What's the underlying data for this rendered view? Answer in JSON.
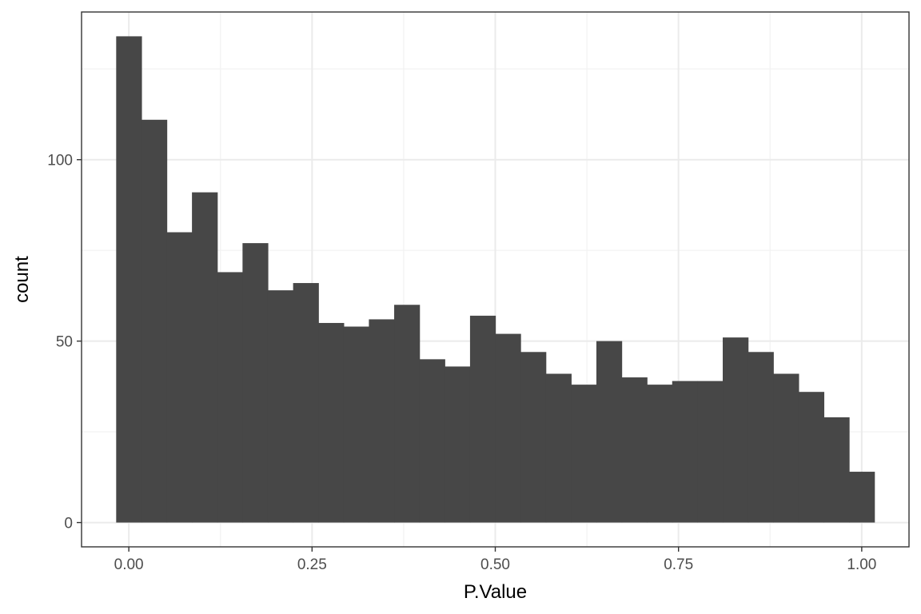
{
  "chart_data": {
    "type": "bar",
    "title": "",
    "xlabel": "P.Value",
    "ylabel": "count",
    "bin_width": 0.0345,
    "bin_start": -0.01725,
    "bins": [
      {
        "x": 0.0,
        "count": 134
      },
      {
        "x": 0.0345,
        "count": 111
      },
      {
        "x": 0.069,
        "count": 80
      },
      {
        "x": 0.1034,
        "count": 91
      },
      {
        "x": 0.1379,
        "count": 69
      },
      {
        "x": 0.1724,
        "count": 77
      },
      {
        "x": 0.2069,
        "count": 64
      },
      {
        "x": 0.2414,
        "count": 66
      },
      {
        "x": 0.2759,
        "count": 55
      },
      {
        "x": 0.3103,
        "count": 54
      },
      {
        "x": 0.3448,
        "count": 56
      },
      {
        "x": 0.3793,
        "count": 60
      },
      {
        "x": 0.4138,
        "count": 45
      },
      {
        "x": 0.4483,
        "count": 43
      },
      {
        "x": 0.4828,
        "count": 57
      },
      {
        "x": 0.5172,
        "count": 52
      },
      {
        "x": 0.5517,
        "count": 47
      },
      {
        "x": 0.5862,
        "count": 41
      },
      {
        "x": 0.6207,
        "count": 38
      },
      {
        "x": 0.6552,
        "count": 50
      },
      {
        "x": 0.6897,
        "count": 40
      },
      {
        "x": 0.7241,
        "count": 38
      },
      {
        "x": 0.7586,
        "count": 39
      },
      {
        "x": 0.7931,
        "count": 39
      },
      {
        "x": 0.8276,
        "count": 51
      },
      {
        "x": 0.8621,
        "count": 47
      },
      {
        "x": 0.8966,
        "count": 41
      },
      {
        "x": 0.931,
        "count": 36
      },
      {
        "x": 0.9655,
        "count": 29
      },
      {
        "x": 1.0,
        "count": 14
      }
    ],
    "xlim": [
      -0.0645,
      1.0645
    ],
    "ylim": [
      -6.7,
      140.7
    ],
    "x_ticks": [
      {
        "value": 0.0,
        "label": "0.00"
      },
      {
        "value": 0.25,
        "label": "0.25"
      },
      {
        "value": 0.5,
        "label": "0.50"
      },
      {
        "value": 0.75,
        "label": "0.75"
      },
      {
        "value": 1.0,
        "label": "1.00"
      }
    ],
    "y_ticks": [
      {
        "value": 0,
        "label": "0"
      },
      {
        "value": 50,
        "label": "50"
      },
      {
        "value": 100,
        "label": "100"
      }
    ],
    "x_minor_ticks": [
      0.125,
      0.375,
      0.625,
      0.875
    ],
    "y_minor_ticks": [
      25,
      75,
      125
    ],
    "grid": true,
    "legend": "none",
    "colors": {
      "bar": "#474747",
      "grid_major": "#ebebeb",
      "grid_minor": "#f2f2f2",
      "border": "#333333",
      "tick_text": "#4d4d4d"
    }
  }
}
